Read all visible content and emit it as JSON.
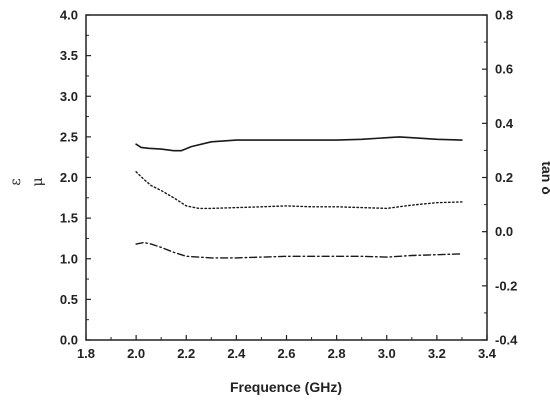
{
  "chart_data": {
    "type": "line",
    "xlabel": "Frequence (GHz)",
    "ylabel_left": [
      "ε",
      "μ"
    ],
    "ylabel_right": "tan δ",
    "xlim": [
      1.8,
      3.4
    ],
    "ylim_left": [
      0.0,
      4.0
    ],
    "ylim_right": [
      -0.4,
      0.8
    ],
    "x_ticks": [
      "1.8",
      "2.0",
      "2.2",
      "2.4",
      "2.6",
      "2.8",
      "3.0",
      "3.2",
      "3.4"
    ],
    "y_left_ticks": [
      "0.0",
      "0.5",
      "1.0",
      "1.5",
      "2.0",
      "2.5",
      "3.0",
      "3.5",
      "4.0"
    ],
    "y_right_ticks": [
      "-0.4",
      "-0.2",
      "0.0",
      "0.2",
      "0.4",
      "0.6",
      "0.8"
    ],
    "grid": false,
    "series": [
      {
        "style": "solid",
        "axis": "left",
        "x": [
          2.0,
          2.02,
          2.05,
          2.1,
          2.15,
          2.18,
          2.22,
          2.3,
          2.4,
          2.5,
          2.6,
          2.7,
          2.8,
          2.9,
          3.0,
          3.05,
          3.1,
          3.2,
          3.3
        ],
        "y": [
          2.41,
          2.37,
          2.36,
          2.35,
          2.33,
          2.33,
          2.38,
          2.44,
          2.46,
          2.46,
          2.46,
          2.46,
          2.46,
          2.47,
          2.49,
          2.5,
          2.49,
          2.47,
          2.46
        ]
      },
      {
        "style": "dotted",
        "axis": "left",
        "x": [
          2.0,
          2.03,
          2.06,
          2.1,
          2.15,
          2.2,
          2.25,
          2.3,
          2.4,
          2.5,
          2.6,
          2.7,
          2.8,
          2.9,
          3.0,
          3.1,
          3.2,
          3.3
        ],
        "y": [
          2.07,
          1.98,
          1.9,
          1.84,
          1.75,
          1.65,
          1.62,
          1.62,
          1.63,
          1.64,
          1.65,
          1.64,
          1.64,
          1.63,
          1.62,
          1.66,
          1.69,
          1.7
        ]
      },
      {
        "style": "dash-dot",
        "axis": "left",
        "x": [
          2.0,
          2.03,
          2.06,
          2.1,
          2.15,
          2.2,
          2.3,
          2.4,
          2.5,
          2.6,
          2.7,
          2.8,
          2.9,
          3.0,
          3.1,
          3.2,
          3.3
        ],
        "y": [
          1.18,
          1.2,
          1.18,
          1.14,
          1.08,
          1.03,
          1.01,
          1.01,
          1.02,
          1.03,
          1.03,
          1.03,
          1.03,
          1.02,
          1.04,
          1.05,
          1.06
        ]
      }
    ]
  },
  "colors": {
    "line": "#1a1a1a",
    "axis": "#222222",
    "background": "#ffffff"
  }
}
